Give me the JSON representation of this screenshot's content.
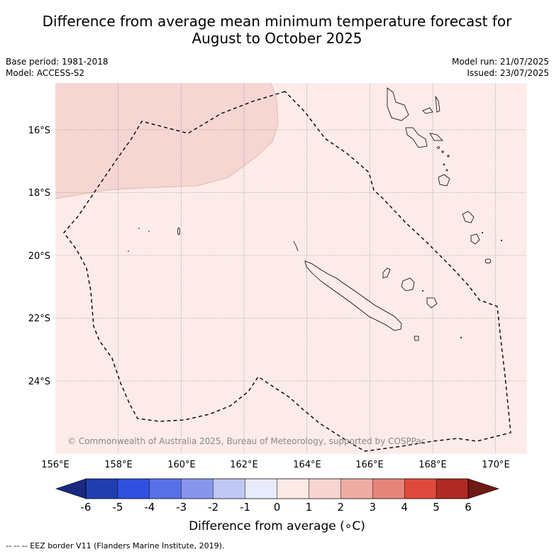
{
  "title_line1": "Difference from average mean minimum temperature forecast for",
  "title_line2": "August to October 2025",
  "meta_left": {
    "base_period": "Base period: 1981-2018",
    "model": "Model: ACCESS-S2"
  },
  "meta_right": {
    "model_run": "Model run: 21/07/2025",
    "issued": "Issued: 23/07/2025"
  },
  "map": {
    "lon_labels": [
      "156°E",
      "158°E",
      "160°E",
      "162°E",
      "164°E",
      "166°E",
      "168°E",
      "170°E"
    ],
    "lat_labels": [
      "16°S",
      "18°S",
      "20°S",
      "22°S",
      "24°S"
    ],
    "copyright": "© Commonwealth of Australia 2025, Bureau of Meteorology, supported by COSPPac",
    "background_color": "#fcebe8",
    "warm_region_color": "#f5d6d2"
  },
  "colorbar": {
    "ticks": [
      "-6",
      "-5",
      "-4",
      "-3",
      "-2",
      "-1",
      "0",
      "1",
      "2",
      "3",
      "4",
      "5",
      "6"
    ],
    "colors": [
      "#213eb0",
      "#2f4fe0",
      "#5870e6",
      "#8796ec",
      "#c1c8f5",
      "#e8ebfb",
      "#fdeae6",
      "#f6d5d1",
      "#eeaba4",
      "#e6847a",
      "#dd4a3c",
      "#ae2a22"
    ],
    "low_extend_color": "#1a2a80",
    "high_extend_color": "#6e1a15",
    "label": "Difference from average (∘C)"
  },
  "footer": "--  --  -- EEZ border V11 (Flanders Marine Institute, 2019)."
}
